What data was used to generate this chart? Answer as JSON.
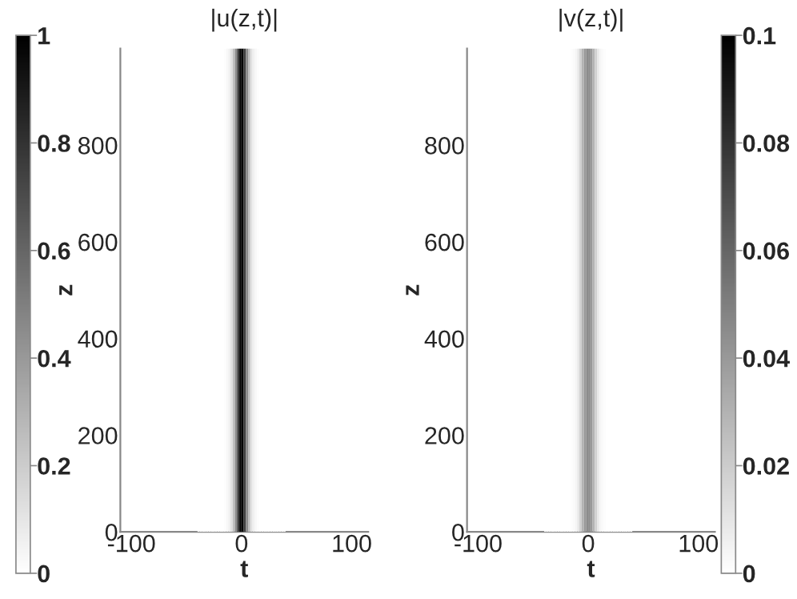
{
  "chart_data": [
    {
      "type": "heatmap",
      "title": "|u(z,t)|",
      "xlabel": "t",
      "ylabel": "z",
      "clim": [
        0,
        1
      ],
      "cticks": [
        0,
        0.2,
        0.4,
        0.6,
        0.8,
        1
      ],
      "xlim": [
        -110,
        115
      ],
      "ylim": [
        0,
        1000
      ],
      "xticks": [
        -100,
        0,
        100
      ],
      "yticks": [
        0,
        200,
        400,
        600,
        800
      ],
      "grid": false,
      "x": [
        -39,
        -37,
        -35,
        -33,
        -31,
        -29,
        -27,
        -25,
        -23,
        -21,
        -19,
        -17,
        -15,
        -13,
        -11,
        -9,
        -7,
        -5,
        -3,
        -1,
        1,
        3,
        5,
        7,
        9,
        11,
        13,
        15,
        17,
        19,
        21,
        23,
        25,
        27,
        29,
        31,
        33,
        35,
        37,
        39
      ],
      "cells": [
        [
          0,
          0,
          0,
          0,
          0,
          0,
          0,
          0,
          0,
          0,
          0,
          0,
          0.01,
          0.03,
          0.06,
          0.12,
          0.25,
          0.45,
          0.75,
          0.97,
          0.97,
          0.75,
          0.45,
          0.25,
          0.12,
          0.06,
          0.03,
          0.01,
          0,
          0,
          0,
          0,
          0,
          0,
          0,
          0,
          0,
          0,
          0,
          0
        ]
      ]
    },
    {
      "type": "heatmap",
      "title": "|v(z,t)|",
      "xlabel": "t",
      "ylabel": "z",
      "clim": [
        0,
        0.1
      ],
      "cticks": [
        0,
        0.02,
        0.04,
        0.06,
        0.08,
        0.1
      ],
      "xlim": [
        -110,
        115
      ],
      "ylim": [
        0,
        1000
      ],
      "xticks": [
        -100,
        0,
        100
      ],
      "yticks": [
        0,
        200,
        400,
        600,
        800
      ],
      "grid": false,
      "x": [
        -39,
        -37,
        -35,
        -33,
        -31,
        -29,
        -27,
        -25,
        -23,
        -21,
        -19,
        -17,
        -15,
        -13,
        -11,
        -9,
        -7,
        -5,
        -3,
        -1,
        1,
        3,
        5,
        7,
        9,
        11,
        13,
        15,
        17,
        19,
        21,
        23,
        25,
        27,
        29,
        31,
        33,
        35,
        37,
        39
      ],
      "cells": [
        [
          0,
          0,
          0,
          0,
          0,
          0,
          0,
          0,
          0,
          0,
          0,
          0,
          0.001,
          0.002,
          0.004,
          0.009,
          0.018,
          0.03,
          0.04,
          0.045,
          0.045,
          0.04,
          0.03,
          0.018,
          0.009,
          0.004,
          0.002,
          0.001,
          0,
          0,
          0,
          0,
          0,
          0,
          0,
          0,
          0,
          0,
          0,
          0
        ]
      ]
    }
  ]
}
